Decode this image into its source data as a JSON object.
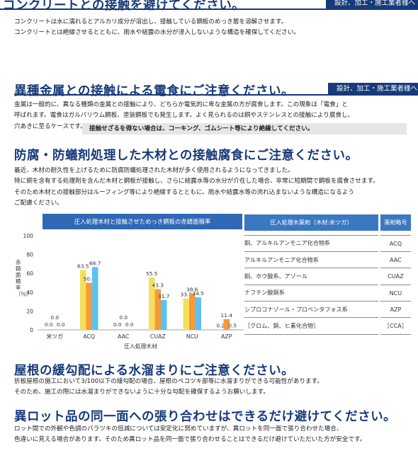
{
  "section1": {
    "title": "コンクリートとの接触を避けてください。",
    "tag": "設計、加工・施工業者様へ",
    "lines": [
      "コンクリートは水に濡れるとアルカリ成分が溶出し、接触している鋼板のめっき層を溶解させます。",
      "コンクリートとは絶縁させるとともに、雨水や結露の水分が浸入しないような構造を確保してください。"
    ]
  },
  "section2": {
    "title": "異種金属との接触による電食にご注意ください。",
    "tag": "設計、加工・施工業者様へ",
    "lines": [
      "金属は一般的に、異なる種類の金属との接触により、どちらか電気的に卑な金属の方が腐食します。この現象は「電食」と",
      "呼ばれます。電食はガルバリウム鋼板、塗装鋼板でも発生します。よく見られるのは銅やステンレスとの接触により腐食し、",
      "穴あきに至るケースです。"
    ],
    "callout": "接触せざるを得ない場合は、コーキング、ゴムシート等により絶縁してください。"
  },
  "section3": {
    "title": "防腐・防蟻剤処理した木材との接触腐食にご注意ください。",
    "lines": [
      "最近、木材の耐久性を上げるために防腐防蟻処理された木材が多く使用されるようになってきました。",
      "特に銅を含有する処理剤を含んだ木材と鋼板が接触し、さらに結露水等の水分が介在した場合、非常に短期間で鋼板を腐食させます。",
      "そのため木材との接触部分はルーフィング等により絶縁するとともに、雨水や結露水等の流れ込まないような構造になるよう",
      "ご配慮ください。"
    ]
  },
  "chart_data": {
    "type": "bar",
    "title": "圧入処理木材と接触させためっき鋼板の赤錆面積率",
    "ylabel": "赤錆面積率（％）",
    "xlabel": "圧入処理木材",
    "ylim": [
      0,
      100
    ],
    "yticks": [
      "0",
      "20",
      "40",
      "60",
      "80",
      "100"
    ],
    "categories": [
      "米ツガ",
      "ACQ",
      "AAC",
      "CUAZ",
      "NCU",
      "AZP"
    ],
    "series": [
      {
        "color": "#f4e05a",
        "values": [
          0.0,
          63.5,
          0.0,
          55.5,
          33.3,
          0.2
        ]
      },
      {
        "color": "#f49a3c",
        "values": [
          0.0,
          50.0,
          0.0,
          43.3,
          38.6,
          11.4
        ]
      },
      {
        "color": "#5bc2ef",
        "values": [
          0.0,
          66.7,
          0.0,
          31.7,
          34.5,
          0.5
        ]
      }
    ],
    "labels": [
      [
        "0.0",
        "63.5",
        "0.0",
        "55.5",
        "33.3",
        "0.2"
      ],
      [
        "0.0",
        "50.0",
        "0.0",
        "43.3",
        "38.6",
        "11.4"
      ],
      [
        "0.0",
        "66.7",
        "0.0",
        "31.7",
        "34.5",
        "0.5"
      ]
    ]
  },
  "agents_table": {
    "header_name": "圧入処理木薬剤（木材:米ツガ）",
    "header_abbr": "薬剤略号",
    "rows": [
      {
        "name": "銅、アルキルアンモニア化合物系",
        "abbr": "ACQ"
      },
      {
        "name": "アルキルアンモニア化合物系",
        "abbr": "AAC"
      },
      {
        "name": "銅、ホウ酸系、アゾール",
        "abbr": "CUAZ"
      },
      {
        "name": "ナフテン酸銅系",
        "abbr": "NCU"
      },
      {
        "name": "シプロコナゾール・プロペンタフォス系",
        "abbr": "AZP"
      },
      {
        "name": "［クロム、銅、ヒ素化合物］",
        "abbr": "［CCA］"
      }
    ]
  },
  "section4": {
    "title": "屋根の緩勾配による水溜まりにご注意ください。",
    "lines": [
      "折板屋根の施工において3/100以下の緩勾配の場合、屋根のベコツキ部等に水溜まりができる可能性があります。",
      "そのため、施工の際には水溜まりができないように十分な勾配を確保するようお願いします。"
    ]
  },
  "section5": {
    "title": "異ロット品の同一面への張り合わせはできるだけ避けてください。",
    "lines": [
      "ロット間での外観や色調のバラツキの低減については安定化に努めていますが、異ロットを同一面で張り合わせた場合、",
      "色違いに見える場合があります。そのため異ロット品を同一面で張り合わせることはできるだけ避けていただいた方が安全です。"
    ]
  }
}
